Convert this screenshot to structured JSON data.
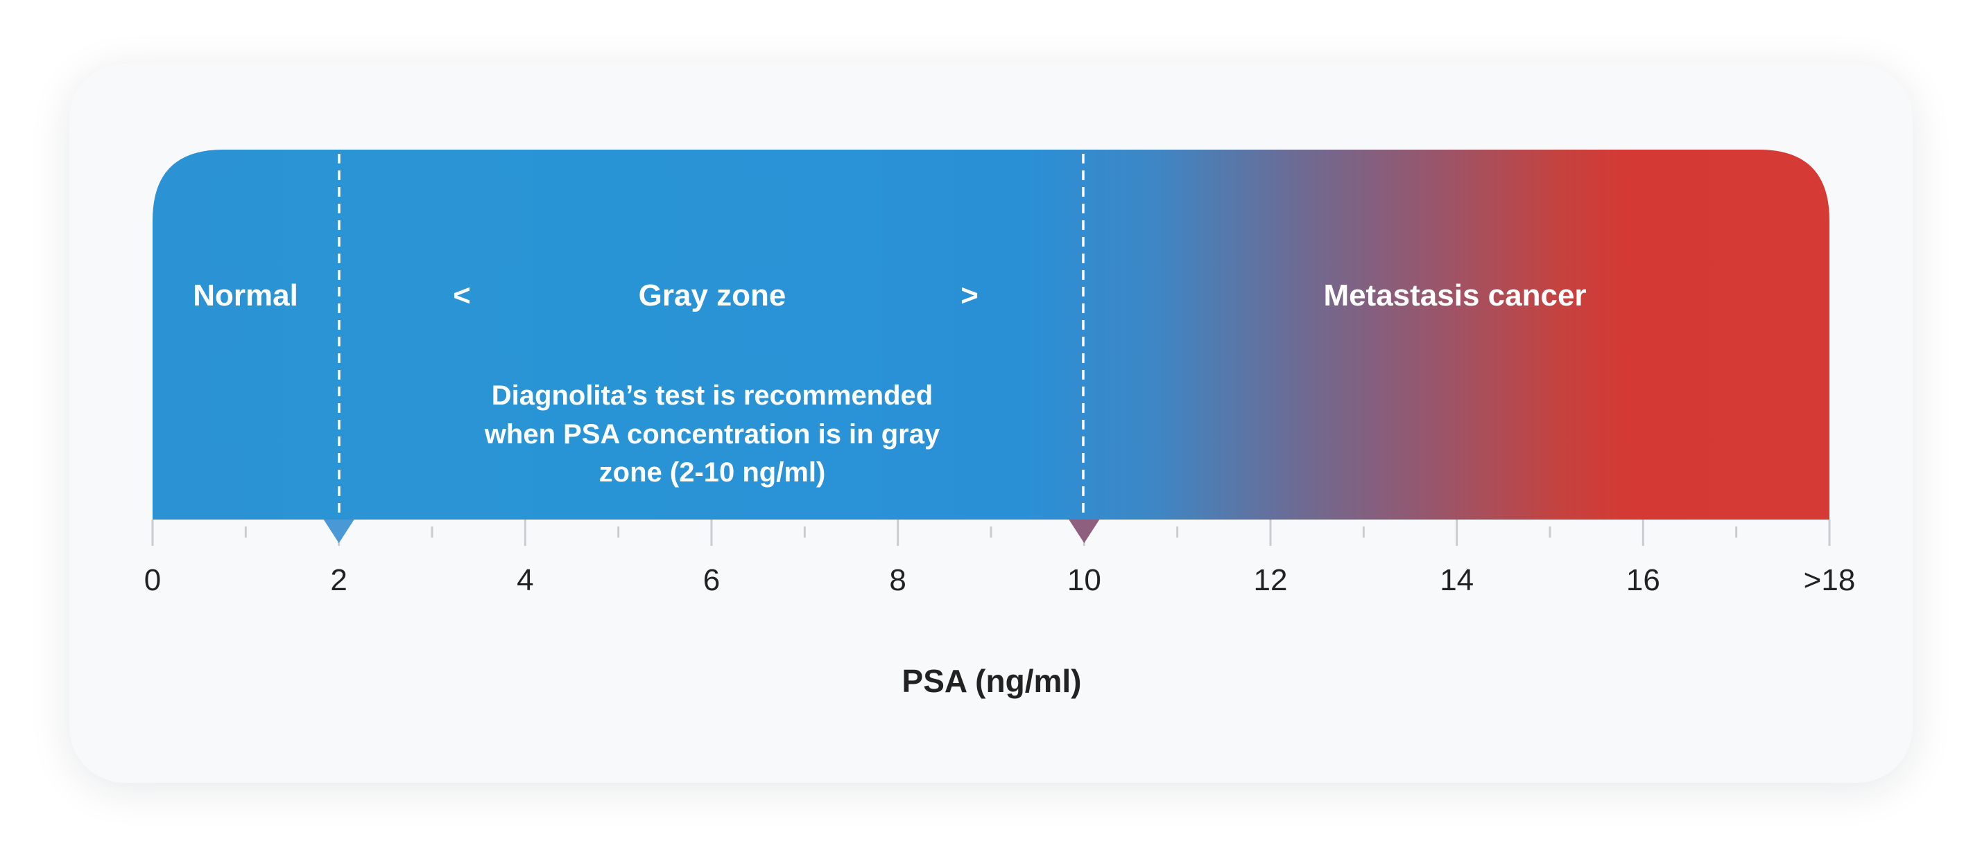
{
  "zones": {
    "normal": {
      "label": "Normal"
    },
    "gray": {
      "label": "Gray zone",
      "left_arrow": "<",
      "right_arrow": ">",
      "note_lines": [
        "Diagnolita’s test is recommended",
        "when PSA concentration is in gray",
        "zone (2-10 ng/ml)"
      ]
    },
    "metastasis": {
      "label": "Metastasis cancer"
    }
  },
  "axis": {
    "label": "PSA (ng/ml)",
    "min": 0,
    "max": 18,
    "major_ticks": [
      {
        "value": 0,
        "label": "0"
      },
      {
        "value": 2,
        "label": "2"
      },
      {
        "value": 4,
        "label": "4"
      },
      {
        "value": 6,
        "label": "6"
      },
      {
        "value": 8,
        "label": "8"
      },
      {
        "value": 10,
        "label": "10"
      },
      {
        "value": 12,
        "label": "12"
      },
      {
        "value": 14,
        "label": "14"
      },
      {
        "value": 16,
        "label": "16"
      },
      {
        "value": 18,
        "label": ">18"
      }
    ],
    "minor_ticks": [
      1,
      3,
      5,
      7,
      9,
      11,
      13,
      15,
      17
    ]
  },
  "thresholds": [
    {
      "value": 2,
      "color": "#4a98d6"
    },
    {
      "value": 10,
      "color": "#8e5f7e"
    }
  ],
  "colors": {
    "blue": "#2994d5",
    "blue_end": "#2a8fd6",
    "purple": "#7a6a8e",
    "red": "#d63a34",
    "text_dark": "#222222",
    "tick": "#c9cdd2"
  }
}
